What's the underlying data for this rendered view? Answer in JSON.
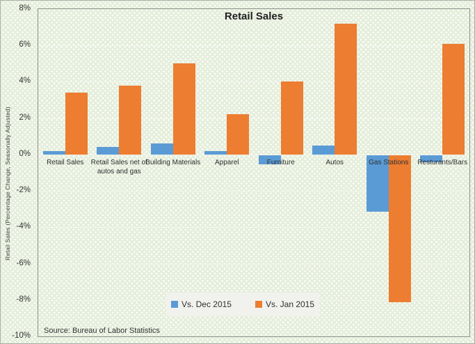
{
  "chart_data": {
    "type": "bar",
    "title": "Retail Sales",
    "xlabel": "",
    "ylabel": "Retail Sales (Percentage Change, Seasonally Adjusted)",
    "categories": [
      "Retail Sales",
      "Retail Sales net of autos and gas",
      "Building Materials",
      "Apparel",
      "Furniture",
      "Autos",
      "Gas Stations",
      "Resturants/Bars"
    ],
    "series": [
      {
        "name": "Vs. Dec 2015",
        "color": "#5B9BD5",
        "values": [
          0.2,
          0.4,
          0.6,
          0.2,
          -0.5,
          0.5,
          -3.1,
          -0.4
        ]
      },
      {
        "name": "Vs. Jan 2015",
        "color": "#ED7D31",
        "values": [
          3.4,
          3.8,
          5.0,
          2.2,
          4.0,
          7.2,
          -8.1,
          6.1
        ]
      }
    ],
    "ylim": [
      -10,
      8
    ],
    "ytick_step": 2,
    "ytick_labels": [
      "8%",
      "6%",
      "4%",
      "2%",
      "0%",
      "-2%",
      "-4%",
      "-6%",
      "-8%",
      "-10%"
    ],
    "grid": "horizontal",
    "legend_position": "bottom-center"
  },
  "source_note": "Source: Bureau of Labor Statistics",
  "colors": {
    "series_blue": "#5B9BD5",
    "series_orange": "#ED7D31",
    "plot_border": "#8c918a",
    "background": "#e5eedb",
    "legend_background": "#f1f2ee"
  }
}
